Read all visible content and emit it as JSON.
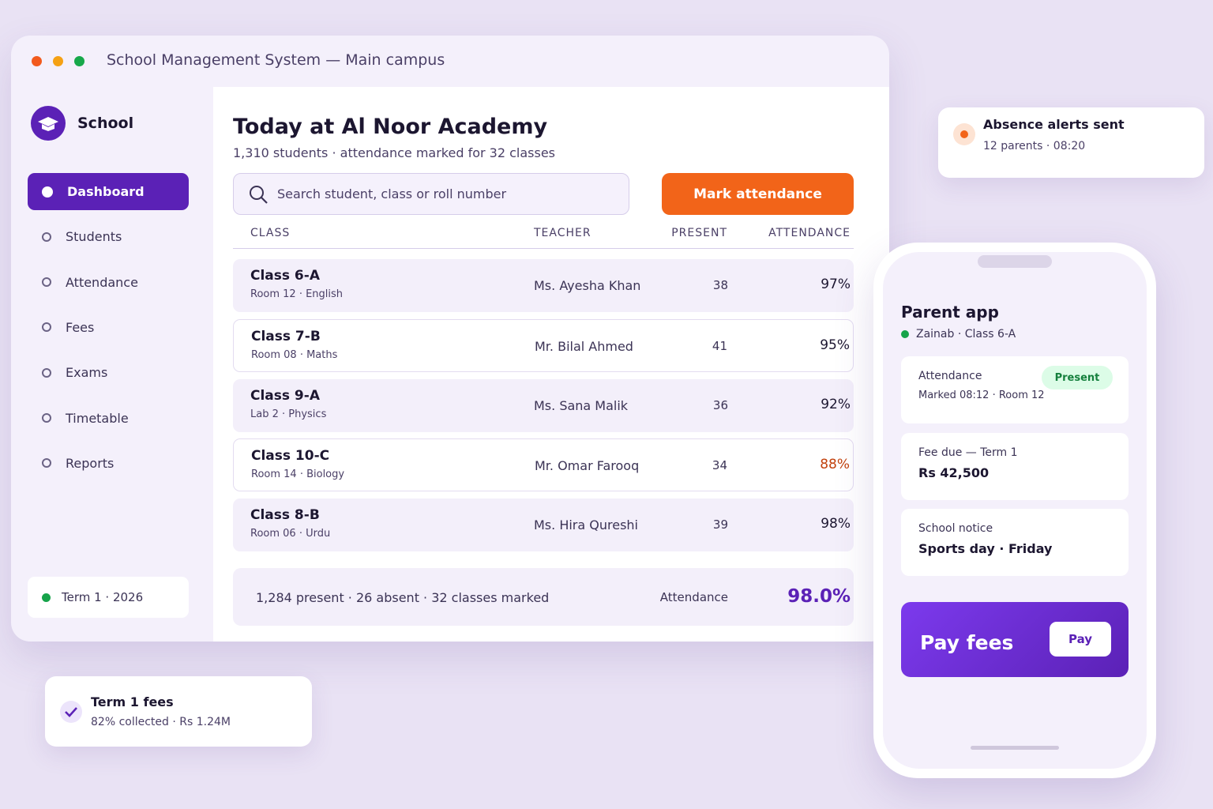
{
  "window": {
    "title": "School Management System — Main campus"
  },
  "sidebar": {
    "brand": "School",
    "nav": [
      "Dashboard",
      "Students",
      "Attendance",
      "Fees",
      "Exams",
      "Timetable",
      "Reports"
    ],
    "term": "Term 1 · 2026"
  },
  "main": {
    "title": "Today at Al Noor Academy",
    "subtitle": "1,310 students · attendance marked for 32 classes",
    "search_placeholder": "Search student, class or roll number",
    "button": "Mark attendance",
    "table": {
      "columns": [
        "CLASS",
        "TEACHER",
        "PRESENT",
        "ATTENDANCE"
      ],
      "rows": [
        {
          "class": "Class 6-A",
          "room": "Room 12 · English",
          "teacher": "Ms. Ayesha Khan",
          "present": 38,
          "attendance": "97%"
        },
        {
          "class": "Class 7-B",
          "room": "Room 08 · Maths",
          "teacher": "Mr. Bilal Ahmed",
          "present": 41,
          "attendance": "95%"
        },
        {
          "class": "Class 9-A",
          "room": "Lab 2 · Physics",
          "teacher": "Ms. Sana Malik",
          "present": 36,
          "attendance": "92%"
        },
        {
          "class": "Class 10-C",
          "room": "Room 14 · Biology",
          "teacher": "Mr. Omar Farooq",
          "present": 34,
          "attendance": "88%",
          "attendance_color": "#c2410c"
        },
        {
          "class": "Class 8-B",
          "room": "Room 06 · Urdu",
          "teacher": "Ms. Hira Qureshi",
          "present": 39,
          "attendance": "98%"
        }
      ]
    },
    "summary": {
      "text": "1,284 present · 26 absent · 32 classes marked",
      "label": "Attendance",
      "value": "98.0%"
    }
  },
  "alert": {
    "title": "Absence alerts sent",
    "detail": "12 parents · 08:20"
  },
  "fees_toast": {
    "title": "Term 1 fees",
    "detail": "82% collected · Rs 1.24M"
  },
  "phone": {
    "title": "Parent app",
    "student": "Zainab · Class 6-A",
    "cards": [
      {
        "label": "Attendance",
        "value": "Marked 08:12 · Room 12",
        "badge": "Present"
      },
      {
        "label": "Fee due — Term 1",
        "value": "Rs 42,500"
      },
      {
        "label": "School notice",
        "value": "Sports day · Friday"
      }
    ],
    "pay_title": "Pay fees",
    "pay_button": "Pay"
  }
}
